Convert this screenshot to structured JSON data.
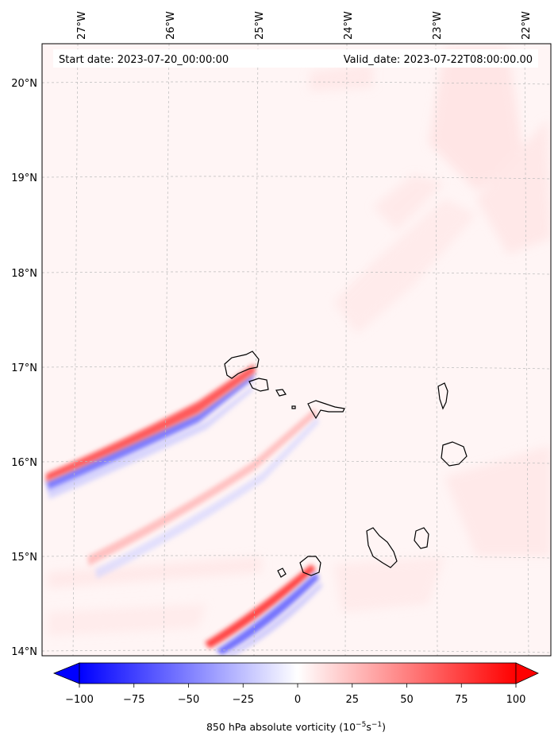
{
  "header": {
    "start_date": "Start date: 2023-07-20_00:00:00",
    "valid_date": "Valid_date: 2023-07-22T08:00:00.00"
  },
  "map": {
    "lon_labels": [
      "27°W",
      "26°W",
      "25°W",
      "24°W",
      "23°W",
      "22°W"
    ],
    "lat_labels": [
      "20°N",
      "19°N",
      "18°N",
      "17°N",
      "16°N",
      "15°N",
      "14°N"
    ],
    "gridlines": true,
    "colors": {
      "negative": "#0000ff",
      "zero": "#ffffff",
      "positive": "#ff0000",
      "coast": "#000000"
    }
  },
  "colorbar": {
    "ticks": [
      "−100",
      "−75",
      "−50",
      "−25",
      "0",
      "25",
      "50",
      "75",
      "100"
    ],
    "min": -100,
    "max": 100,
    "label_text": "850 hPa absolute vorticity (10",
    "label_exp1": "−5",
    "label_mid": "s",
    "label_exp2": "−1",
    "label_end": ")",
    "extend": "both"
  }
}
